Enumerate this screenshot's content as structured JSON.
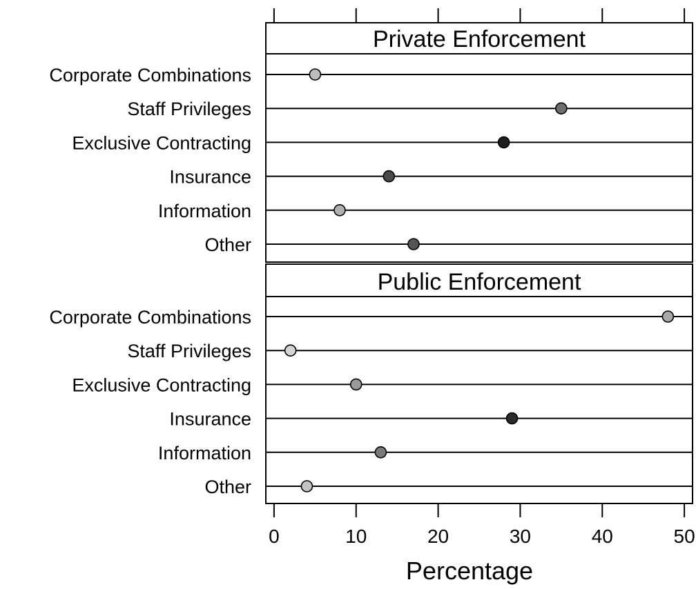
{
  "chart_data": {
    "type": "dot",
    "xlabel": "Percentage",
    "xlim": [
      -1,
      51
    ],
    "xticks": [
      0,
      10,
      20,
      30,
      40,
      50
    ],
    "categories": [
      "Corporate Combinations",
      "Staff Privileges",
      "Exclusive Contracting",
      "Insurance",
      "Information",
      "Other"
    ],
    "panels": [
      {
        "title": "Private Enforcement",
        "values": [
          5,
          35,
          28,
          14,
          8,
          17
        ],
        "colors": [
          "#bdbdbd",
          "#6e6e6e",
          "#1e1e1e",
          "#4a4a4a",
          "#b0b0b0",
          "#555555"
        ]
      },
      {
        "title": "Public Enforcement",
        "values": [
          48,
          2,
          10,
          29,
          13,
          4
        ],
        "colors": [
          "#a8a8a8",
          "#d4d4d4",
          "#9a9a9a",
          "#2a2a2a",
          "#7a7a7a",
          "#c4c4c4"
        ]
      }
    ]
  }
}
